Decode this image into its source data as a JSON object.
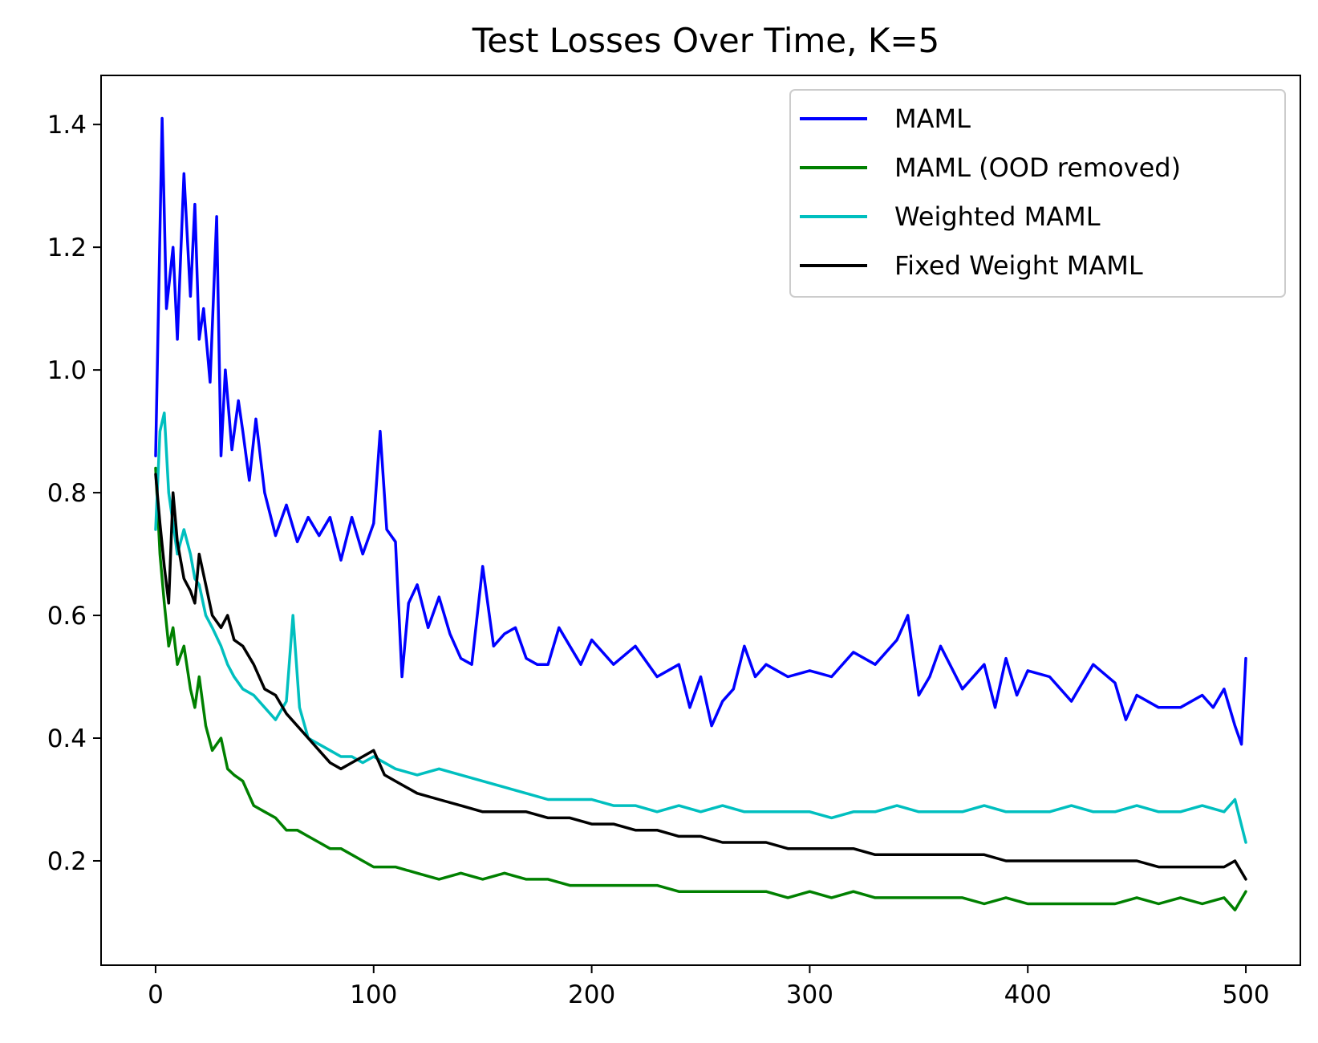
{
  "chart_data": {
    "type": "line",
    "title": "Test Losses Over Time, K=5",
    "xlabel": "",
    "ylabel": "",
    "xlim": [
      -25,
      525
    ],
    "ylim": [
      0.03,
      1.48
    ],
    "x_ticks": [
      0,
      100,
      200,
      300,
      400,
      500
    ],
    "y_ticks": [
      0.2,
      0.4,
      0.6,
      0.8,
      1.0,
      1.2,
      1.4
    ],
    "x_tick_labels": [
      "0",
      "100",
      "200",
      "300",
      "400",
      "500"
    ],
    "y_tick_labels": [
      "0.2",
      "0.4",
      "0.6",
      "0.8",
      "1.0",
      "1.2",
      "1.4"
    ],
    "grid": false,
    "legend_position": "top-right",
    "series": [
      {
        "name": "MAML",
        "color": "#0000ff",
        "x": [
          0,
          3,
          5,
          8,
          10,
          13,
          16,
          18,
          20,
          22,
          25,
          28,
          30,
          32,
          35,
          38,
          40,
          43,
          46,
          50,
          55,
          60,
          65,
          70,
          75,
          80,
          85,
          90,
          95,
          100,
          103,
          106,
          110,
          113,
          116,
          120,
          125,
          130,
          135,
          140,
          145,
          150,
          155,
          160,
          165,
          170,
          175,
          180,
          185,
          190,
          195,
          200,
          210,
          220,
          230,
          240,
          245,
          250,
          255,
          260,
          265,
          270,
          275,
          280,
          290,
          300,
          310,
          320,
          330,
          340,
          345,
          350,
          355,
          360,
          370,
          380,
          385,
          390,
          395,
          400,
          410,
          420,
          430,
          440,
          445,
          450,
          460,
          470,
          480,
          485,
          490,
          495,
          498,
          500
        ],
        "y": [
          0.86,
          1.41,
          1.1,
          1.2,
          1.05,
          1.32,
          1.12,
          1.27,
          1.05,
          1.1,
          0.98,
          1.25,
          0.86,
          1.0,
          0.87,
          0.95,
          0.9,
          0.82,
          0.92,
          0.8,
          0.73,
          0.78,
          0.72,
          0.76,
          0.73,
          0.76,
          0.69,
          0.76,
          0.7,
          0.75,
          0.9,
          0.74,
          0.72,
          0.5,
          0.62,
          0.65,
          0.58,
          0.63,
          0.57,
          0.53,
          0.52,
          0.68,
          0.55,
          0.57,
          0.58,
          0.53,
          0.52,
          0.52,
          0.58,
          0.55,
          0.52,
          0.56,
          0.52,
          0.55,
          0.5,
          0.52,
          0.45,
          0.5,
          0.42,
          0.46,
          0.48,
          0.55,
          0.5,
          0.52,
          0.5,
          0.51,
          0.5,
          0.54,
          0.52,
          0.56,
          0.6,
          0.47,
          0.5,
          0.55,
          0.48,
          0.52,
          0.45,
          0.53,
          0.47,
          0.51,
          0.5,
          0.46,
          0.52,
          0.49,
          0.43,
          0.47,
          0.45,
          0.45,
          0.47,
          0.45,
          0.48,
          0.42,
          0.39,
          0.53
        ]
      },
      {
        "name": "MAML (OOD removed)",
        "color": "#008000",
        "x": [
          0,
          2,
          4,
          6,
          8,
          10,
          13,
          16,
          18,
          20,
          23,
          26,
          30,
          33,
          36,
          40,
          45,
          50,
          55,
          60,
          65,
          70,
          75,
          80,
          85,
          90,
          95,
          100,
          110,
          120,
          130,
          140,
          150,
          160,
          170,
          180,
          190,
          200,
          210,
          220,
          230,
          240,
          250,
          260,
          270,
          280,
          290,
          300,
          310,
          320,
          330,
          340,
          350,
          360,
          370,
          380,
          390,
          400,
          410,
          420,
          430,
          440,
          450,
          460,
          470,
          480,
          490,
          495,
          500
        ],
        "y": [
          0.84,
          0.7,
          0.62,
          0.55,
          0.58,
          0.52,
          0.55,
          0.48,
          0.45,
          0.5,
          0.42,
          0.38,
          0.4,
          0.35,
          0.34,
          0.33,
          0.29,
          0.28,
          0.27,
          0.25,
          0.25,
          0.24,
          0.23,
          0.22,
          0.22,
          0.21,
          0.2,
          0.19,
          0.19,
          0.18,
          0.17,
          0.18,
          0.17,
          0.18,
          0.17,
          0.17,
          0.16,
          0.16,
          0.16,
          0.16,
          0.16,
          0.15,
          0.15,
          0.15,
          0.15,
          0.15,
          0.14,
          0.15,
          0.14,
          0.15,
          0.14,
          0.14,
          0.14,
          0.14,
          0.14,
          0.13,
          0.14,
          0.13,
          0.13,
          0.13,
          0.13,
          0.13,
          0.14,
          0.13,
          0.14,
          0.13,
          0.14,
          0.12,
          0.15
        ]
      },
      {
        "name": "Weighted MAML",
        "color": "#00bfbf",
        "x": [
          0,
          2,
          4,
          6,
          8,
          10,
          13,
          16,
          18,
          20,
          23,
          26,
          30,
          33,
          36,
          40,
          45,
          50,
          55,
          60,
          63,
          66,
          70,
          75,
          80,
          85,
          90,
          95,
          100,
          110,
          120,
          130,
          140,
          150,
          160,
          170,
          180,
          190,
          200,
          210,
          220,
          230,
          240,
          250,
          260,
          270,
          280,
          290,
          300,
          310,
          320,
          330,
          340,
          350,
          360,
          370,
          380,
          390,
          400,
          410,
          420,
          430,
          440,
          450,
          460,
          470,
          480,
          490,
          495,
          500
        ],
        "y": [
          0.74,
          0.9,
          0.93,
          0.8,
          0.75,
          0.7,
          0.74,
          0.7,
          0.66,
          0.65,
          0.6,
          0.58,
          0.55,
          0.52,
          0.5,
          0.48,
          0.47,
          0.45,
          0.43,
          0.46,
          0.6,
          0.45,
          0.4,
          0.39,
          0.38,
          0.37,
          0.37,
          0.36,
          0.37,
          0.35,
          0.34,
          0.35,
          0.34,
          0.33,
          0.32,
          0.31,
          0.3,
          0.3,
          0.3,
          0.29,
          0.29,
          0.28,
          0.29,
          0.28,
          0.29,
          0.28,
          0.28,
          0.28,
          0.28,
          0.27,
          0.28,
          0.28,
          0.29,
          0.28,
          0.28,
          0.28,
          0.29,
          0.28,
          0.28,
          0.28,
          0.29,
          0.28,
          0.28,
          0.29,
          0.28,
          0.28,
          0.29,
          0.28,
          0.3,
          0.23
        ]
      },
      {
        "name": "Fixed Weight MAML",
        "color": "#000000",
        "x": [
          0,
          2,
          4,
          6,
          8,
          10,
          13,
          16,
          18,
          20,
          23,
          26,
          30,
          33,
          36,
          40,
          45,
          50,
          55,
          60,
          65,
          70,
          75,
          80,
          85,
          90,
          95,
          100,
          105,
          110,
          120,
          130,
          140,
          150,
          160,
          170,
          180,
          190,
          200,
          210,
          220,
          230,
          240,
          250,
          260,
          270,
          280,
          290,
          300,
          310,
          320,
          330,
          340,
          350,
          360,
          370,
          380,
          390,
          400,
          410,
          420,
          430,
          440,
          450,
          460,
          470,
          480,
          490,
          495,
          500
        ],
        "y": [
          0.83,
          0.75,
          0.68,
          0.62,
          0.8,
          0.72,
          0.66,
          0.64,
          0.62,
          0.7,
          0.65,
          0.6,
          0.58,
          0.6,
          0.56,
          0.55,
          0.52,
          0.48,
          0.47,
          0.44,
          0.42,
          0.4,
          0.38,
          0.36,
          0.35,
          0.36,
          0.37,
          0.38,
          0.34,
          0.33,
          0.31,
          0.3,
          0.29,
          0.28,
          0.28,
          0.28,
          0.27,
          0.27,
          0.26,
          0.26,
          0.25,
          0.25,
          0.24,
          0.24,
          0.23,
          0.23,
          0.23,
          0.22,
          0.22,
          0.22,
          0.22,
          0.21,
          0.21,
          0.21,
          0.21,
          0.21,
          0.21,
          0.2,
          0.2,
          0.2,
          0.2,
          0.2,
          0.2,
          0.2,
          0.19,
          0.19,
          0.19,
          0.19,
          0.2,
          0.17
        ]
      }
    ]
  }
}
